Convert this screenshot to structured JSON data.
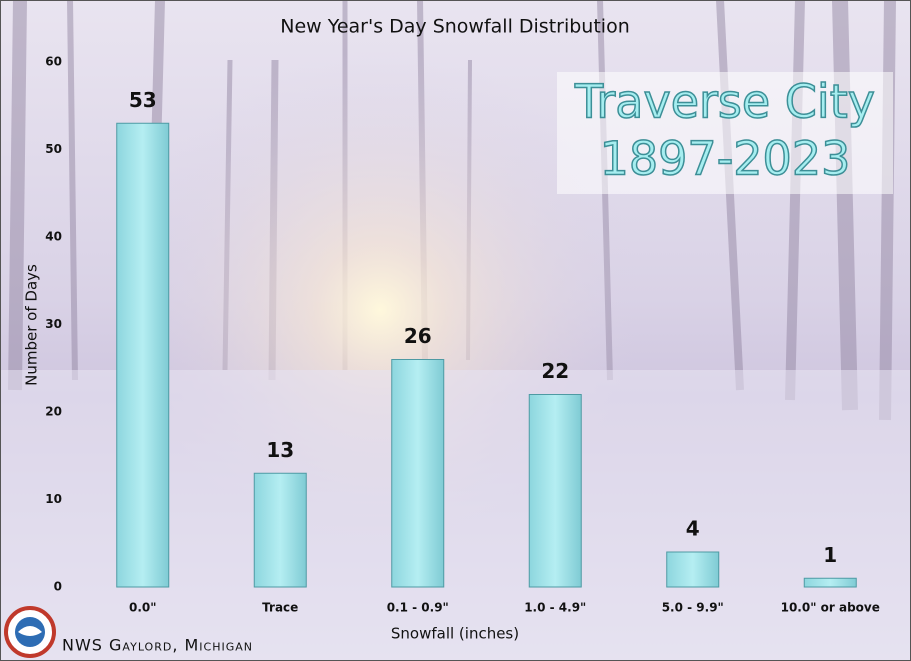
{
  "chart_data": {
    "type": "bar",
    "title": "New Year's Day Snowfall Distribution",
    "annotation": [
      "Traverse City",
      "1897-2023"
    ],
    "x_label": "Snowfall (inches)",
    "y_label": "Number of Days",
    "categories": [
      "0.0\"",
      "Trace",
      "0.1 - 0.9\"",
      "1.0 - 4.9\"",
      "5.0 - 9.9\"",
      "10.0\" or above"
    ],
    "values": [
      53,
      13,
      26,
      22,
      4,
      1
    ],
    "color": "#9fe3ea",
    "ylim": [
      0,
      60
    ],
    "yticks": [
      0,
      10,
      20,
      30,
      40,
      50,
      60
    ],
    "grid": false,
    "footer": "NWS Gaylord, Michigan"
  }
}
